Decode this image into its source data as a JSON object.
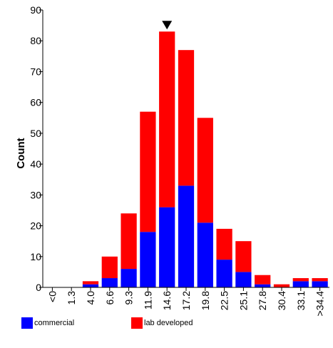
{
  "chart_data": {
    "type": "bar",
    "stacked": true,
    "ylabel": "Count",
    "xlabel": "",
    "ylim": [
      0,
      90
    ],
    "yticks": [
      0,
      10,
      20,
      30,
      40,
      50,
      60,
      70,
      80,
      90
    ],
    "categories": [
      "<0",
      "1.3",
      "4.0",
      "6.6",
      "9.3",
      "11.9",
      "14.6",
      "17.2",
      "19.8",
      "22.5",
      "25.1",
      "27.8",
      "30.4",
      "33.1",
      ">34.4"
    ],
    "series": [
      {
        "name": "commercial",
        "color": "#0000ff",
        "values": [
          0,
          0,
          1,
          3,
          6,
          18,
          26,
          33,
          21,
          9,
          5,
          1,
          0,
          2,
          2
        ]
      },
      {
        "name": "lab developed",
        "color": "#ff0000",
        "values": [
          0,
          0,
          1,
          7,
          18,
          39,
          57,
          44,
          34,
          10,
          10,
          3,
          1,
          1,
          1
        ]
      }
    ],
    "marker": {
      "category": "14.6",
      "symbol": "triangle-down"
    }
  },
  "legend": {
    "items": [
      {
        "label": "commercial",
        "color": "#0000ff"
      },
      {
        "label": "lab developed",
        "color": "#ff0000"
      }
    ]
  }
}
